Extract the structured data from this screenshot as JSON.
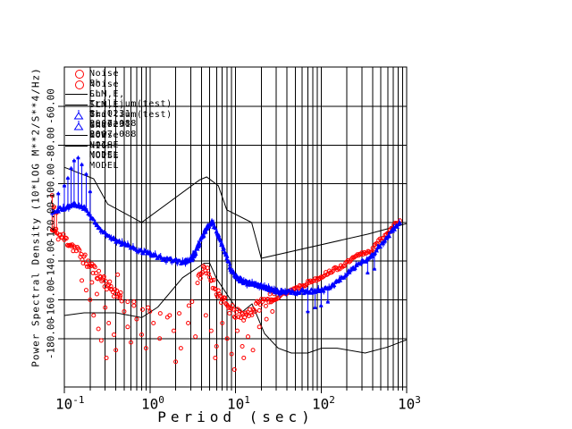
{
  "x_axis": {
    "label": "Period (sec)",
    "ticks": [
      {
        "base": "10",
        "exp": "-1"
      },
      {
        "base": "10",
        "exp": "0"
      },
      {
        "base": "10",
        "exp": "1"
      },
      {
        "base": "10",
        "exp": "2"
      },
      {
        "base": "10",
        "exp": "3"
      }
    ]
  },
  "y_axis": {
    "label": "Power Spectral Density (10*LOG M**2/S**4/Hz)",
    "ticks": [
      "-60.00",
      "-80.00",
      "-100.00",
      "-120.00",
      "-140.00",
      "-160.00",
      "-180.00"
    ]
  },
  "legend": {
    "items": [
      {
        "symbol": "circle",
        "color": "#ff0000",
        "label": "Noise Bh"
      },
      {
        "symbol": "circle",
        "color": "#ff0000",
        "label": "Noise Lh"
      },
      {
        "symbol": "line",
        "color": "#000000",
        "label": "SLM,E, Trillium(test) BL 0231 2007.088"
      },
      {
        "symbol": "line",
        "color": "#000000",
        "label": "SLM,E, Trillium(test) LL 0231 2007.088"
      },
      {
        "symbol": "triangle",
        "color": "#0000ff",
        "label": "Gnd Noise B"
      },
      {
        "symbol": "triangle",
        "color": "#0000ff",
        "label": "Gnd Noise L"
      },
      {
        "symbol": "line",
        "color": "#000000",
        "label": "LOW NOISE MODEL"
      },
      {
        "symbol": "line",
        "color": "#000000",
        "label": "HIGH NOISE MODEL"
      }
    ]
  },
  "chart_data": {
    "type": "scatter",
    "title": "",
    "xlabel": "Period (sec)",
    "ylabel": "Power Spectral Density (10*LOG M**2/S**4/Hz)",
    "xscale": "log",
    "xlim": [
      0.1,
      1000
    ],
    "ylim": [
      -205,
      -40
    ],
    "grid": {
      "vertical": "log decades with minor lines 2-9",
      "horizontal": "every 20 dB from -60 to -180"
    },
    "y_major_ticks": [
      -60,
      -80,
      -100,
      -120,
      -140,
      -160,
      -180
    ],
    "colors": {
      "noise": "#ff0000",
      "gnd_noise": "#0000ff",
      "models": "#000000",
      "grid": "#000000"
    },
    "series": [
      {
        "name": "HIGH NOISE MODEL",
        "type": "line",
        "color": "#000000",
        "points": [
          [
            0.1,
            -91.5
          ],
          [
            0.22,
            -97.4
          ],
          [
            0.32,
            -110.5
          ],
          [
            0.8,
            -120
          ],
          [
            3.8,
            -98
          ],
          [
            4.6,
            -96.5
          ],
          [
            6.3,
            -101
          ],
          [
            7.9,
            -113.5
          ],
          [
            15.4,
            -120
          ],
          [
            20,
            -138.5
          ],
          [
            354.8,
            -126
          ],
          [
            1000,
            -120.6
          ]
        ]
      },
      {
        "name": "LOW NOISE MODEL",
        "type": "line",
        "color": "#000000",
        "points": [
          [
            0.1,
            -168.1
          ],
          [
            0.17,
            -166.7
          ],
          [
            0.4,
            -166.7
          ],
          [
            0.8,
            -169.2
          ],
          [
            1.24,
            -163.7
          ],
          [
            2.4,
            -148.6
          ],
          [
            4.3,
            -141.1
          ],
          [
            5,
            -141.1
          ],
          [
            6,
            -149
          ],
          [
            10,
            -163.8
          ],
          [
            12,
            -166.2
          ],
          [
            15.6,
            -162.1
          ],
          [
            21.9,
            -177.5
          ],
          [
            31.6,
            -185
          ],
          [
            45,
            -187.5
          ],
          [
            70,
            -187.5
          ],
          [
            101,
            -185
          ],
          [
            154,
            -185
          ],
          [
            328,
            -187.5
          ],
          [
            600,
            -184.4
          ],
          [
            1000,
            -180.6
          ]
        ]
      },
      {
        "name": "Noise Bh",
        "type": "scatter",
        "marker": "circle",
        "color": "#ff0000",
        "jitter": 3.0,
        "density": 85,
        "seed": 11,
        "segments": [
          [
            [
              0.072,
              -124
            ],
            [
              0.08,
              -125.5
            ],
            [
              0.09,
              -127
            ],
            [
              0.1,
              -128.5
            ],
            [
              0.115,
              -130.5
            ],
            [
              0.13,
              -133
            ],
            [
              0.15,
              -136
            ],
            [
              0.17,
              -139
            ],
            [
              0.2,
              -142.5
            ],
            [
              0.24,
              -146
            ],
            [
              0.28,
              -149.5
            ],
            [
              0.33,
              -153
            ],
            [
              0.4,
              -156.5
            ],
            [
              0.48,
              -159
            ]
          ],
          [
            [
              3.6,
              -149
            ],
            [
              4.1,
              -145
            ],
            [
              4.7,
              -146
            ],
            [
              5.3,
              -150
            ],
            [
              6,
              -155
            ],
            [
              6.8,
              -159
            ],
            [
              7.7,
              -162.5
            ],
            [
              8.7,
              -165
            ],
            [
              10,
              -167
            ],
            [
              11.5,
              -168.5
            ],
            [
              13.5,
              -167.5
            ],
            [
              16,
              -165
            ],
            [
              19,
              -162.5
            ],
            [
              22,
              -160.5
            ],
            [
              26,
              -158.5
            ],
            [
              30,
              -157
            ]
          ]
        ],
        "spikes": [
          [
            0.072,
            -124,
            -106
          ],
          [
            0.076,
            -125,
            -112
          ],
          [
            0.081,
            -126,
            -115
          ]
        ],
        "outliers": [
          [
            0.16,
            -150
          ],
          [
            0.18,
            -155
          ],
          [
            0.2,
            -160
          ],
          [
            0.21,
            -151
          ],
          [
            0.22,
            -168
          ],
          [
            0.24,
            -157
          ],
          [
            0.25,
            -175
          ],
          [
            0.27,
            -181
          ],
          [
            0.29,
            -148
          ],
          [
            0.3,
            -164
          ],
          [
            0.31,
            -190
          ],
          [
            0.33,
            -172
          ],
          [
            0.35,
            -153
          ],
          [
            0.38,
            -178
          ],
          [
            0.4,
            -186
          ],
          [
            0.42,
            -147
          ],
          [
            0.45,
            -158
          ],
          [
            0.5,
            -166
          ],
          [
            0.55,
            -174
          ],
          [
            0.6,
            -182
          ],
          [
            0.65,
            -161
          ],
          [
            0.7,
            -170
          ],
          [
            0.8,
            -178
          ],
          [
            0.9,
            -185
          ],
          [
            0.95,
            -164
          ],
          [
            1.1,
            -172
          ],
          [
            1.3,
            -180
          ],
          [
            1.6,
            -169
          ],
          [
            1.9,
            -176
          ],
          [
            2.0,
            -192
          ],
          [
            2.3,
            -185
          ],
          [
            2.8,
            -172
          ],
          [
            3.4,
            -179
          ],
          [
            4.5,
            -168
          ],
          [
            5.2,
            -176
          ],
          [
            5.8,
            -190
          ],
          [
            6.0,
            -184
          ],
          [
            7.0,
            -172
          ],
          [
            8.0,
            -180
          ],
          [
            9.0,
            -188
          ],
          [
            9.7,
            -196
          ],
          [
            10.5,
            -176
          ],
          [
            12,
            -184
          ],
          [
            12.5,
            -190
          ],
          [
            14,
            -179
          ],
          [
            16,
            -186
          ],
          [
            19,
            -174
          ],
          [
            23,
            -170
          ],
          [
            27,
            -166
          ],
          [
            0.55,
            -161
          ],
          [
            0.65,
            -163
          ],
          [
            0.82,
            -165
          ],
          [
            1.0,
            -166
          ],
          [
            1.32,
            -167
          ],
          [
            1.7,
            -168
          ],
          [
            2.2,
            -167
          ],
          [
            2.85,
            -163
          ],
          [
            3.1,
            -161
          ]
        ]
      },
      {
        "name": "Noise Lh",
        "type": "scatter",
        "marker": "circle",
        "color": "#ff0000",
        "jitter": 1.0,
        "density": 70,
        "seed": 13,
        "segments": [
          [
            [
              26,
              -160
            ],
            [
              34,
              -157.5
            ],
            [
              45,
              -155
            ],
            [
              60,
              -152.5
            ],
            [
              80,
              -150
            ],
            [
              100,
              -148
            ],
            [
              125,
              -145.5
            ],
            [
              160,
              -143.5
            ],
            [
              200,
              -141
            ],
            [
              250,
              -138
            ],
            [
              310,
              -136
            ],
            [
              390,
              -134.5
            ],
            [
              470,
              -130
            ],
            [
              560,
              -126.5
            ],
            [
              660,
              -123.5
            ],
            [
              760,
              -120.5
            ],
            [
              860,
              -118.5
            ]
          ]
        ]
      },
      {
        "name": "Gnd Noise B",
        "type": "scatter",
        "marker": "triangle",
        "color": "#0000ff",
        "jitter": 1.0,
        "density": 95,
        "seed": 14,
        "errorEvery": 6,
        "segments": [
          [
            [
              0.072,
              -115
            ],
            [
              0.08,
              -114
            ],
            [
              0.09,
              -113
            ],
            [
              0.1,
              -112.5
            ],
            [
              0.115,
              -111.5
            ],
            [
              0.13,
              -111
            ],
            [
              0.15,
              -111
            ],
            [
              0.17,
              -112.5
            ],
            [
              0.19,
              -115
            ],
            [
              0.22,
              -119
            ],
            [
              0.26,
              -123
            ],
            [
              0.3,
              -126
            ],
            [
              0.37,
              -128.5
            ],
            [
              0.45,
              -130.5
            ],
            [
              0.55,
              -132
            ],
            [
              0.7,
              -134
            ],
            [
              0.9,
              -135.5
            ],
            [
              1.1,
              -137
            ],
            [
              1.4,
              -138.5
            ],
            [
              1.8,
              -139.5
            ],
            [
              2.3,
              -140.5
            ],
            [
              2.9,
              -139.5
            ],
            [
              3.4,
              -135
            ],
            [
              4,
              -128
            ],
            [
              4.7,
              -122
            ],
            [
              5.4,
              -119.5
            ],
            [
              6,
              -124
            ],
            [
              6.8,
              -131
            ],
            [
              7.7,
              -137
            ],
            [
              8.7,
              -144
            ],
            [
              9.7,
              -147.5
            ],
            [
              11,
              -149.5
            ],
            [
              13,
              -151
            ],
            [
              16,
              -152
            ],
            [
              20,
              -153
            ],
            [
              25,
              -154.5
            ],
            [
              32,
              -156
            ],
            [
              40,
              -155.5
            ]
          ]
        ],
        "spikes": [
          [
            0.085,
            -114,
            -105
          ],
          [
            0.1,
            -112.5,
            -101
          ],
          [
            0.11,
            -112,
            -97
          ],
          [
            0.12,
            -111.5,
            -92
          ],
          [
            0.13,
            -111,
            -88
          ],
          [
            0.145,
            -111,
            -86.5
          ],
          [
            0.16,
            -111.5,
            -90
          ],
          [
            0.18,
            -113,
            -95
          ],
          [
            0.2,
            -116,
            -104
          ]
        ]
      },
      {
        "name": "Gnd Noise L",
        "type": "scatter",
        "marker": "triangle",
        "color": "#0000ff",
        "jitter": 1.0,
        "density": 95,
        "seed": 15,
        "errorEvery": 6,
        "segments": [
          [
            [
              2.6,
              -140.5
            ],
            [
              3.2,
              -138.5
            ],
            [
              3.9,
              -130
            ],
            [
              4.6,
              -123
            ],
            [
              5.3,
              -120
            ],
            [
              6.1,
              -125
            ],
            [
              7,
              -132
            ],
            [
              8,
              -138
            ],
            [
              9,
              -145
            ],
            [
              10.5,
              -148.5
            ],
            [
              12.5,
              -150.5
            ],
            [
              15,
              -151.5
            ],
            [
              19,
              -152.5
            ],
            [
              24,
              -154
            ],
            [
              30,
              -155.5
            ],
            [
              40,
              -156
            ],
            [
              55,
              -156
            ],
            [
              75,
              -155.5
            ],
            [
              100,
              -155
            ],
            [
              130,
              -153.5
            ],
            [
              160,
              -150
            ],
            [
              200,
              -146.5
            ],
            [
              250,
              -143
            ],
            [
              310,
              -140
            ],
            [
              390,
              -137.5
            ],
            [
              470,
              -133
            ],
            [
              560,
              -129
            ],
            [
              660,
              -125
            ],
            [
              760,
              -122
            ],
            [
              860,
              -119.5
            ]
          ]
        ],
        "spikes": [
          [
            70,
            -155.5,
            -166
          ],
          [
            85,
            -155.5,
            -164
          ],
          [
            100,
            -155,
            -163
          ],
          [
            120,
            -154,
            -161
          ],
          [
            350,
            -138.5,
            -146
          ],
          [
            420,
            -137,
            -144
          ]
        ]
      }
    ]
  }
}
